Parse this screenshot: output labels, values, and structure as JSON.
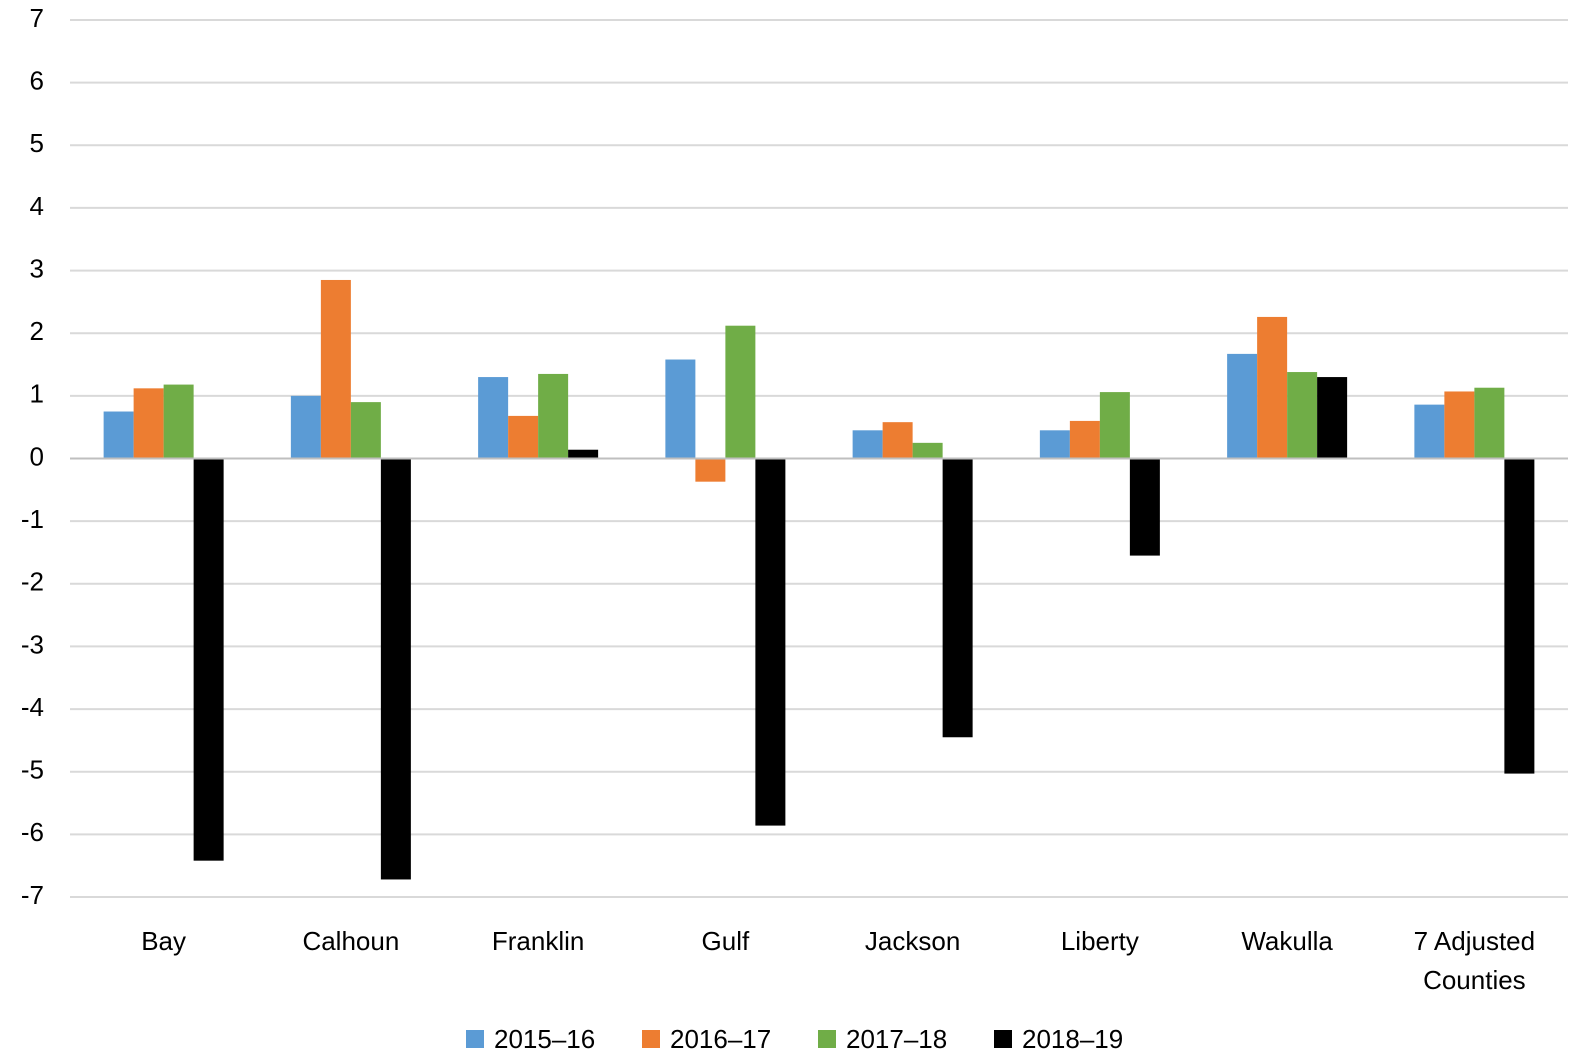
{
  "chart_data": {
    "type": "bar",
    "title": "",
    "xlabel": "",
    "ylabel": "",
    "ylim": [
      -7,
      7
    ],
    "y_ticks": [
      7,
      6,
      5,
      4,
      3,
      2,
      1,
      0,
      -1,
      -2,
      -3,
      -4,
      -5,
      -6,
      -7
    ],
    "grid": true,
    "legend_position": "bottom",
    "categories": [
      [
        "Bay"
      ],
      [
        "Calhoun"
      ],
      [
        "Franklin"
      ],
      [
        "Gulf"
      ],
      [
        "Jackson"
      ],
      [
        "Liberty"
      ],
      [
        "Wakulla"
      ],
      [
        "7 Adjusted",
        "Counties"
      ]
    ],
    "series": [
      {
        "name": "2015–16",
        "color": "#5b9bd5",
        "values": [
          0.75,
          1.0,
          1.3,
          1.58,
          0.45,
          0.45,
          1.67,
          0.86
        ]
      },
      {
        "name": "2016–17",
        "color": "#ed7d31",
        "values": [
          1.12,
          2.85,
          0.68,
          -0.37,
          0.58,
          0.6,
          2.26,
          1.07
        ]
      },
      {
        "name": "2017–18",
        "color": "#70ad47",
        "values": [
          1.18,
          0.9,
          1.35,
          2.12,
          0.25,
          1.06,
          1.38,
          1.13
        ]
      },
      {
        "name": "2018–19",
        "color": "#000000",
        "values": [
          -6.42,
          -6.72,
          0.14,
          -5.86,
          -4.45,
          -1.55,
          1.3,
          -5.03
        ]
      }
    ]
  }
}
